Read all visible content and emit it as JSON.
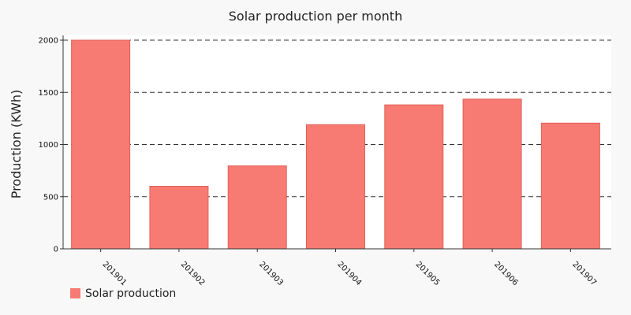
{
  "chart_data": {
    "type": "bar",
    "title": "Solar production per month",
    "xlabel": "",
    "ylabel": "Production (KWh)",
    "categories": [
      "201901",
      "201902",
      "201903",
      "201904",
      "201905",
      "201906",
      "201907"
    ],
    "series": [
      {
        "name": "Solar production",
        "values": [
          2000,
          600,
          795,
          1190,
          1380,
          1435,
          1205
        ],
        "color": "#f77b72"
      }
    ],
    "ylim": [
      0,
      2000
    ],
    "yticks": [
      0,
      500,
      1000,
      1500,
      2000
    ],
    "grid": true,
    "legend": "bottom-left"
  }
}
